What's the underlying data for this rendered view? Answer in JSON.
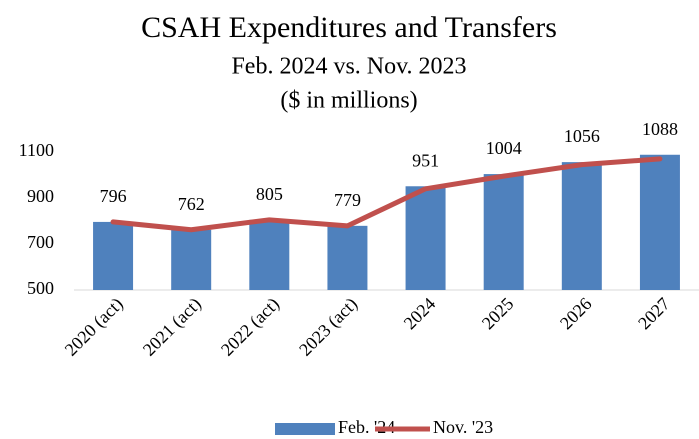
{
  "chart_data": {
    "type": "bar_line",
    "title": "CSAH Expenditures and Transfers",
    "subtitle": "Feb. 2024 vs. Nov. 2023",
    "unit_note": "($ in millions)",
    "categories": [
      "2020 (act)",
      "2021 (act)",
      "2022 (act)",
      "2023 (act)",
      "2024",
      "2025",
      "2026",
      "2027"
    ],
    "series": [
      {
        "name": "Feb. '24",
        "type": "bar",
        "color": "#4f81bd",
        "values": [
          796,
          762,
          805,
          779,
          951,
          1004,
          1056,
          1088
        ]
      },
      {
        "name": "Nov. '23",
        "type": "line",
        "color": "#c0504d",
        "values": [
          796,
          762,
          805,
          779,
          940,
          995,
          1045,
          1070
        ]
      }
    ],
    "ylim": [
      500,
      1100
    ],
    "yticks": [
      500,
      700,
      900,
      1100
    ],
    "grid": false,
    "legend": "bottom"
  }
}
